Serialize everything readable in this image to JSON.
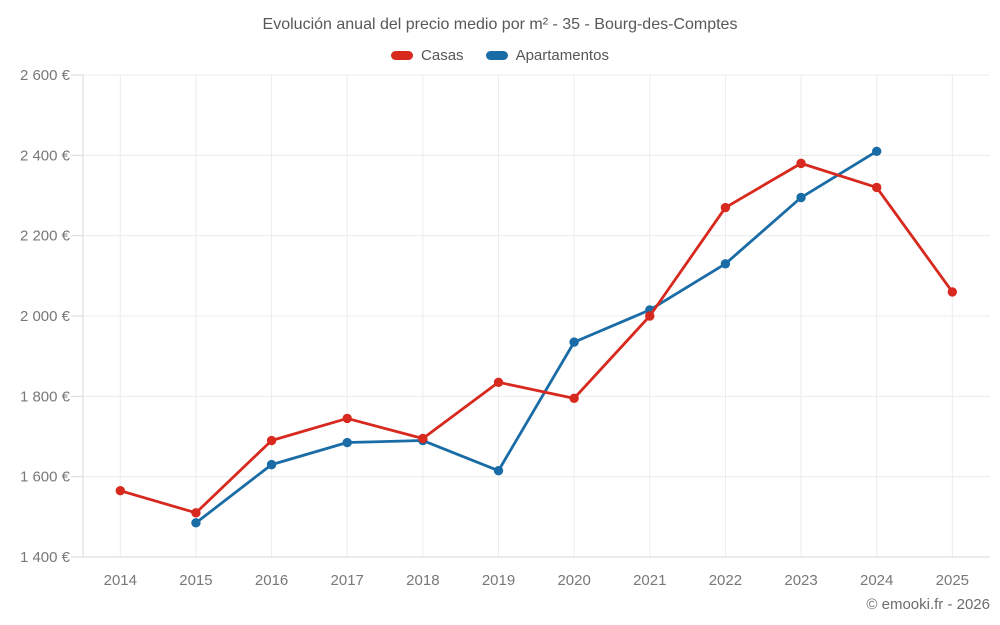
{
  "chart_data": {
    "type": "line",
    "title": "Evolución anual del precio medio por m² - 35 - Bourg-des-Comptes",
    "xlabel": "",
    "ylabel": "",
    "x": [
      2014,
      2015,
      2016,
      2017,
      2018,
      2019,
      2020,
      2021,
      2022,
      2023,
      2024,
      2025
    ],
    "x_labels": [
      "2014",
      "2015",
      "2016",
      "2017",
      "2018",
      "2019",
      "2020",
      "2021",
      "2022",
      "2023",
      "2024",
      "2025"
    ],
    "series": [
      {
        "name": "Casas",
        "color": "#d8291f",
        "values": [
          1565,
          1510,
          1690,
          1745,
          1695,
          1835,
          1795,
          2000,
          2270,
          2380,
          2320,
          2060
        ]
      },
      {
        "name": "Apartamentos",
        "color": "#1a6ca6",
        "values": [
          null,
          1485,
          1630,
          1685,
          1690,
          1615,
          1935,
          2015,
          2130,
          2295,
          2410,
          null
        ]
      }
    ],
    "ylim": [
      1400,
      2600
    ],
    "y_ticks": [
      {
        "value": 2600,
        "label": "2 600 €"
      },
      {
        "value": 2400,
        "label": "2 400 €"
      },
      {
        "value": 2200,
        "label": "2 200 €"
      },
      {
        "value": 2000,
        "label": "2 000 €"
      },
      {
        "value": 1800,
        "label": "1 800 €"
      },
      {
        "value": 1600,
        "label": "1 600 €"
      },
      {
        "value": 1400,
        "label": "1 400 €"
      }
    ],
    "grid": true,
    "legend_position": "top"
  },
  "footer": {
    "credit": "© emooki.fr - 2026"
  }
}
